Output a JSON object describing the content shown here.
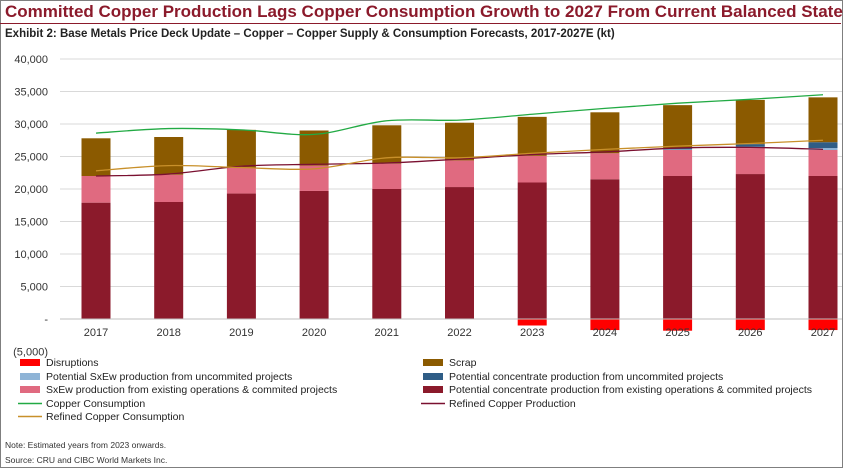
{
  "header": {
    "title": "Committed Copper Production Lags Copper Consumption Growth to 2027 From Current Balanced State",
    "subtitle": "Exhibit 2: Base Metals Price Deck Update – Copper – Copper Supply & Consumption Forecasts, 2017-2027E (kt)"
  },
  "footer": {
    "note": "Note: Estimated years from 2023 onwards.",
    "source": "Source: CRU and CIBC World Markets Inc."
  },
  "colors": {
    "disruptions": "#ff0000",
    "scrap": "#8b5a00",
    "potential_sxew": "#8fb4d6",
    "potential_concentrate": "#2f5d86",
    "sxew_existing": "#e06a80",
    "concentrate_existing": "#8b1a2b",
    "copper_consumption": "#22aa44",
    "refined_production": "#7a1030",
    "refined_consumption": "#c8902a"
  },
  "chart_data": {
    "type": "bar",
    "stacked": true,
    "categories": [
      "2017",
      "2018",
      "2019",
      "2020",
      "2021",
      "2022",
      "2023",
      "2024",
      "2025",
      "2026",
      "2027"
    ],
    "y_ticks": [
      "40,000",
      "35,000",
      "30,000",
      "25,000",
      "20,000",
      "15,000",
      "10,000",
      "5,000",
      "-",
      "(5,000)"
    ],
    "ylim": [
      -5000,
      40000
    ],
    "grid": true,
    "legend_position": "bottom",
    "series": [
      {
        "key": "disruptions",
        "name": "Disruptions",
        "kind": "bar",
        "values": [
          0,
          0,
          0,
          0,
          0,
          0,
          -1000,
          -1700,
          -1800,
          -1700,
          -1700
        ]
      },
      {
        "key": "concentrate_existing",
        "name": "Potential concentrate production from existing operations & commited projects",
        "kind": "bar",
        "values": [
          17900,
          18000,
          19300,
          19700,
          20000,
          20300,
          21000,
          21500,
          22000,
          22300,
          22000
        ]
      },
      {
        "key": "sxew_existing",
        "name": "SxEw production from existing operations & commited projects",
        "kind": "bar",
        "values": [
          4100,
          4200,
          4000,
          3900,
          3900,
          4100,
          4100,
          4000,
          4000,
          4000,
          4000
        ]
      },
      {
        "key": "potential_sxew",
        "name": "Potential SxEw production from uncommited projects",
        "kind": "bar",
        "values": [
          0,
          0,
          0,
          0,
          0,
          0,
          0,
          0,
          100,
          200,
          300
        ]
      },
      {
        "key": "potential_concentrate",
        "name": "Potential concentrate production from uncommited projects",
        "kind": "bar",
        "values": [
          0,
          0,
          0,
          0,
          0,
          0,
          0,
          0,
          200,
          400,
          900
        ]
      },
      {
        "key": "scrap",
        "name": "Scrap",
        "kind": "bar",
        "values": [
          5800,
          5800,
          5800,
          5400,
          5900,
          5800,
          6000,
          6300,
          6600,
          6800,
          6900
        ]
      },
      {
        "key": "copper_consumption",
        "name": "Copper Consumption",
        "kind": "line",
        "values": [
          28600,
          29300,
          29100,
          28400,
          30500,
          30600,
          31500,
          32400,
          33200,
          33800,
          34500
        ]
      },
      {
        "key": "refined_production",
        "name": "Refined Copper Production",
        "kind": "line",
        "values": [
          22000,
          22300,
          23500,
          23800,
          24000,
          24600,
          25300,
          25700,
          26300,
          26400,
          26100
        ]
      },
      {
        "key": "refined_consumption",
        "name": "Refined Copper Consumption",
        "kind": "line",
        "values": [
          22800,
          23600,
          23300,
          23100,
          24800,
          24800,
          25500,
          26100,
          26600,
          27000,
          27500
        ]
      }
    ],
    "legend_order": [
      "disruptions",
      "scrap",
      "potential_sxew",
      "potential_concentrate",
      "sxew_existing",
      "concentrate_existing",
      "copper_consumption",
      "refined_production",
      "refined_consumption"
    ]
  }
}
